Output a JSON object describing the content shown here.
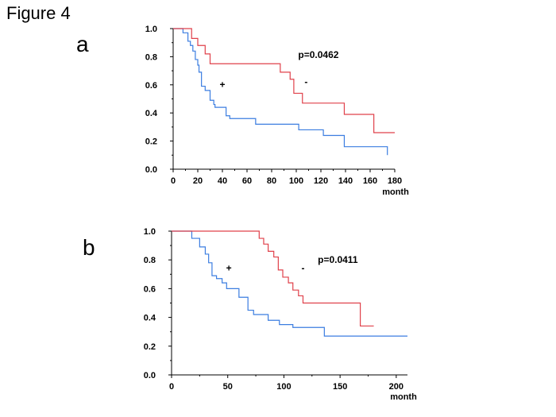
{
  "figure_title": "Figure 4",
  "panels": [
    {
      "letter": "a"
    },
    {
      "letter": "b"
    }
  ],
  "colors": {
    "positive": "#3b7de0",
    "negative": "#e0404a",
    "axis": "#000000"
  },
  "chart_data": [
    {
      "type": "line",
      "step": true,
      "xlabel": "month",
      "ylabel": "",
      "xlim": [
        0,
        180
      ],
      "ylim": [
        0.0,
        1.0
      ],
      "x_ticks": [
        0,
        20,
        40,
        60,
        80,
        100,
        120,
        140,
        160,
        180
      ],
      "y_ticks": [
        "0.0",
        "0.2",
        "0.4",
        "0.6",
        "0.8",
        "1.0"
      ],
      "grid": false,
      "annotations": [
        {
          "text": "p=0.0462",
          "x": 118,
          "y": 0.79
        },
        {
          "text": "+",
          "x": 40,
          "y": 0.58
        },
        {
          "text": "-",
          "x": 108,
          "y": 0.6
        }
      ],
      "series": [
        {
          "name": "+",
          "color": "#3b7de0",
          "x": [
            0,
            8,
            12,
            14,
            16,
            18,
            20,
            21,
            23,
            26,
            30,
            33,
            34,
            43,
            46,
            48,
            67,
            102,
            122,
            139,
            174
          ],
          "y": [
            1.0,
            0.97,
            0.91,
            0.88,
            0.84,
            0.78,
            0.74,
            0.69,
            0.59,
            0.56,
            0.49,
            0.46,
            0.44,
            0.38,
            0.36,
            0.36,
            0.32,
            0.28,
            0.24,
            0.16,
            0.1
          ]
        },
        {
          "name": "-",
          "color": "#e0404a",
          "x": [
            0,
            15,
            20,
            26,
            30,
            37,
            87,
            95,
            98,
            105,
            139,
            163,
            180
          ],
          "y": [
            1.0,
            0.93,
            0.88,
            0.82,
            0.75,
            0.75,
            0.69,
            0.64,
            0.54,
            0.47,
            0.39,
            0.26,
            0.26
          ]
        }
      ]
    },
    {
      "type": "line",
      "step": true,
      "xlabel": "month",
      "ylabel": "",
      "xlim": [
        0,
        210
      ],
      "ylim": [
        0.0,
        1.0
      ],
      "x_ticks": [
        0,
        50,
        100,
        150,
        200
      ],
      "y_ticks": [
        "0.0",
        "0.2",
        "0.4",
        "0.6",
        "0.8",
        "1.0"
      ],
      "grid": false,
      "annotations": [
        {
          "text": "p=0.0411",
          "x": 148,
          "y": 0.78
        },
        {
          "text": "+",
          "x": 51,
          "y": 0.72
        },
        {
          "text": "-",
          "x": 117,
          "y": 0.72
        }
      ],
      "series": [
        {
          "name": "+",
          "color": "#3b7de0",
          "x": [
            0,
            18,
            25,
            30,
            33,
            36,
            40,
            45,
            49,
            60,
            68,
            73,
            86,
            96,
            108,
            136,
            210
          ],
          "y": [
            1.0,
            0.95,
            0.89,
            0.84,
            0.78,
            0.69,
            0.67,
            0.64,
            0.6,
            0.54,
            0.45,
            0.42,
            0.38,
            0.35,
            0.33,
            0.27,
            0.27
          ]
        },
        {
          "name": "-",
          "color": "#e0404a",
          "x": [
            0,
            78,
            82,
            86,
            91,
            95,
            99,
            104,
            108,
            113,
            117,
            127,
            168,
            180
          ],
          "y": [
            1.0,
            0.95,
            0.91,
            0.86,
            0.82,
            0.73,
            0.68,
            0.64,
            0.59,
            0.55,
            0.5,
            0.5,
            0.34,
            0.34
          ]
        }
      ]
    }
  ]
}
